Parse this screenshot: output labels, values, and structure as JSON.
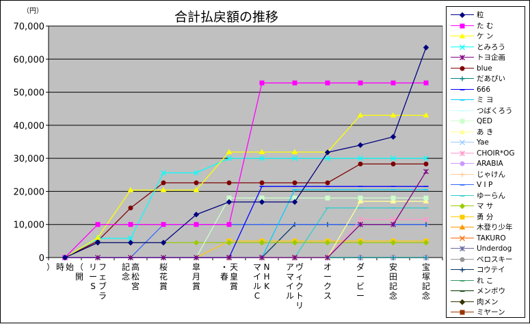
{
  "chart_data": {
    "type": "line",
    "title": "合計払戻額の推移",
    "ylabel": "（円）",
    "ylim": [
      0,
      70000
    ],
    "yticks": [
      "0",
      "10,000",
      "20,000",
      "30,000",
      "40,000",
      "50,000",
      "60,000",
      "70,000"
    ],
    "grid": true,
    "legend_position": "right",
    "categories": [
      [
        "（開",
        "始",
        "時",
        "）"
      ],
      [
        "フェブラ",
        "リーS"
      ],
      [
        "高松宮",
        "記念"
      ],
      [
        "桜花賞"
      ],
      [
        "皐月賞"
      ],
      [
        "天皇賞",
        "・春"
      ],
      [
        "NHK",
        "マイルC"
      ],
      [
        "ヴィクトリ",
        "アマイル"
      ],
      [
        "オークス"
      ],
      [
        "ダービー"
      ],
      [
        "安田記念"
      ],
      [
        "宝塚記念"
      ]
    ],
    "series": [
      {
        "name": "粒",
        "color": "#000080",
        "marker": "diamond",
        "values": [
          0,
          4500,
          4500,
          4500,
          13000,
          16800,
          16800,
          16800,
          31800,
          34000,
          36500,
          63500
        ]
      },
      {
        "name": "た む",
        "color": "#ff00ff",
        "marker": "square",
        "values": [
          0,
          10000,
          10000,
          10000,
          10000,
          10000,
          52800,
          52800,
          52800,
          52800,
          52800,
          52800
        ]
      },
      {
        "name": "ケ ン",
        "color": "#ffff00",
        "marker": "triangle",
        "values": [
          0,
          6000,
          20400,
          20400,
          20400,
          31900,
          31900,
          31900,
          31900,
          43000,
          43000,
          43000
        ]
      },
      {
        "name": "とみろう",
        "color": "#00ffff",
        "marker": "x",
        "values": [
          0,
          5800,
          5800,
          25600,
          25600,
          30000,
          30000,
          30000,
          30000,
          30000,
          30000,
          30000
        ]
      },
      {
        "name": "トヨ企画",
        "color": "#800080",
        "marker": "star",
        "values": [
          0,
          0,
          0,
          0,
          0,
          0,
          0,
          0,
          0,
          10000,
          10000,
          26000
        ]
      },
      {
        "name": "blue",
        "color": "#800000",
        "marker": "circle",
        "values": [
          0,
          5000,
          15000,
          22600,
          22600,
          22600,
          22600,
          22600,
          22600,
          28300,
          28300,
          28300
        ]
      },
      {
        "name": "だあぴい",
        "color": "#008080",
        "marker": "plus",
        "values": [
          0,
          0,
          0,
          0,
          0,
          0,
          0,
          0,
          0,
          0,
          0,
          0
        ]
      },
      {
        "name": "666",
        "color": "#0000ff",
        "marker": "dash",
        "values": [
          0,
          0,
          0,
          0,
          0,
          0,
          21500,
          21500,
          21500,
          21500,
          21500,
          21500
        ]
      },
      {
        "name": "ミ ヨ",
        "color": "#00ccff",
        "marker": "dash",
        "values": [
          0,
          0,
          0,
          0,
          0,
          0,
          0,
          20500,
          20500,
          20500,
          20500,
          20500
        ]
      },
      {
        "name": "つばくろう",
        "color": "#ccffff",
        "marker": "dash",
        "values": [
          0,
          0,
          0,
          0,
          0,
          0,
          0,
          0,
          0,
          0,
          0,
          0
        ]
      },
      {
        "name": "QED",
        "color": "#ccffcc",
        "marker": "square",
        "values": [
          0,
          0,
          0,
          0,
          0,
          18000,
          18000,
          18000,
          18000,
          18000,
          18000,
          18000
        ]
      },
      {
        "name": "あ き",
        "color": "#ffff99",
        "marker": "triangle",
        "values": [
          0,
          0,
          0,
          0,
          0,
          0,
          0,
          0,
          0,
          17000,
          17000,
          17000
        ]
      },
      {
        "name": "Yae",
        "color": "#99ccff",
        "marker": "x",
        "values": [
          0,
          0,
          0,
          0,
          0,
          0,
          0,
          0,
          0,
          0,
          0,
          0
        ]
      },
      {
        "name": "CHOIR*OG",
        "color": "#ff99cc",
        "marker": "star",
        "values": [
          0,
          0,
          0,
          0,
          0,
          0,
          0,
          0,
          0,
          11500,
          11500,
          11500
        ]
      },
      {
        "name": "ARABIA",
        "color": "#cc99ff",
        "marker": "circle",
        "values": [
          0,
          0,
          0,
          0,
          0,
          0,
          0,
          0,
          0,
          0,
          0,
          0
        ]
      },
      {
        "name": "じゃけん",
        "color": "#ffcc99",
        "marker": "plus",
        "values": [
          0,
          0,
          0,
          0,
          0,
          0,
          0,
          0,
          0,
          0,
          0,
          0
        ]
      },
      {
        "name": "V I P",
        "color": "#3366ff",
        "marker": "dash",
        "values": [
          0,
          0,
          0,
          10000,
          10000,
          10000,
          10000,
          10000,
          10000,
          10000,
          10000,
          10000
        ]
      },
      {
        "name": "ゆーらん",
        "color": "#33cccc",
        "marker": "dash",
        "values": [
          0,
          0,
          0,
          0,
          0,
          0,
          0,
          0,
          15000,
          15000,
          15000,
          15000
        ]
      },
      {
        "name": "マ サ",
        "color": "#99cc00",
        "marker": "diamond",
        "values": [
          0,
          4500,
          4500,
          4500,
          4500,
          4500,
          4500,
          4500,
          4500,
          4500,
          4500,
          4500
        ]
      },
      {
        "name": "勇 分",
        "color": "#ffcc00",
        "marker": "square",
        "values": [
          0,
          0,
          0,
          0,
          0,
          5000,
          5000,
          5000,
          5000,
          5000,
          5000,
          5000
        ]
      },
      {
        "name": "木登り少年",
        "color": "#ff9900",
        "marker": "triangle",
        "values": [
          0,
          0,
          0,
          0,
          0,
          0,
          0,
          0,
          0,
          0,
          0,
          0
        ]
      },
      {
        "name": "TAKURO",
        "color": "#ff6600",
        "marker": "x",
        "values": [
          0,
          0,
          0,
          0,
          0,
          0,
          0,
          0,
          0,
          0,
          0,
          0
        ]
      },
      {
        "name": "Underdog",
        "color": "#666699",
        "marker": "star",
        "values": [
          0,
          0,
          0,
          0,
          0,
          0,
          0,
          0,
          0,
          0,
          0,
          0
        ]
      },
      {
        "name": "ペロスキー",
        "color": "#969696",
        "marker": "circle",
        "values": [
          0,
          0,
          0,
          0,
          0,
          0,
          0,
          0,
          0,
          0,
          0,
          0
        ]
      },
      {
        "name": "コウテイ",
        "color": "#003366",
        "marker": "plus",
        "values": [
          0,
          0,
          0,
          0,
          0,
          0,
          0,
          10000,
          10000,
          10000,
          10000,
          10000
        ]
      },
      {
        "name": "れ こ",
        "color": "#339966",
        "marker": "dash",
        "values": [
          0,
          0,
          0,
          0,
          0,
          0,
          0,
          0,
          0,
          0,
          0,
          0
        ]
      },
      {
        "name": "メンボウ",
        "color": "#003300",
        "marker": "dash",
        "values": [
          0,
          0,
          0,
          0,
          0,
          0,
          0,
          0,
          0,
          0,
          0,
          0
        ]
      },
      {
        "name": "肉メン",
        "color": "#333300",
        "marker": "diamond",
        "values": [
          0,
          0,
          0,
          0,
          0,
          0,
          0,
          0,
          0,
          0,
          0,
          0
        ]
      },
      {
        "name": "ミヤーン",
        "color": "#993300",
        "marker": "square",
        "values": [
          0,
          0,
          0,
          0,
          0,
          0,
          0,
          0,
          0,
          0,
          0,
          0
        ]
      }
    ]
  }
}
